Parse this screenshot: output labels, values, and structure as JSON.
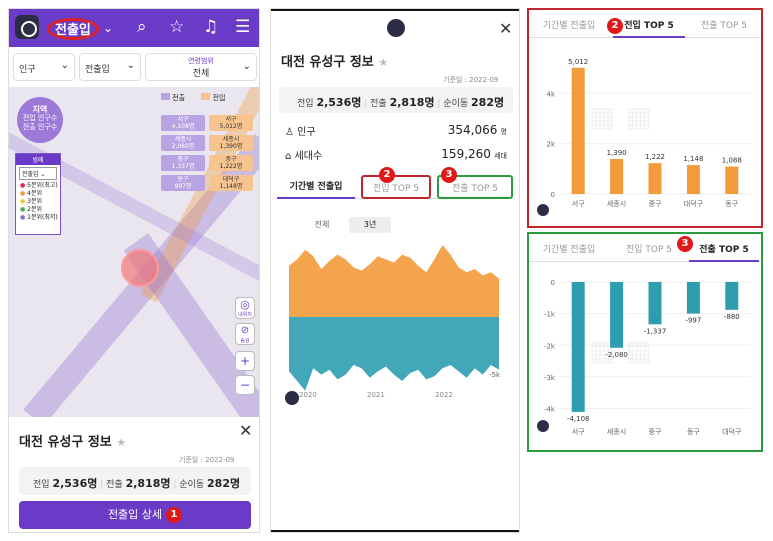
{
  "colors": {
    "purple": "#6a3bc7",
    "inflow_orange": "#f39a3a",
    "outflow_teal": "#2e9db0",
    "highlight_red": "#c0262b",
    "highlight_green": "#2a9d3e"
  },
  "panel1": {
    "header": {
      "title": "전출입",
      "icons": [
        "home-logo-icon",
        "chevron-down-icon",
        "search-icon",
        "star-icon",
        "bell-icon",
        "menu-icon"
      ]
    },
    "filters": {
      "population": "인구",
      "inout": "전출입",
      "age_label": "연령범위",
      "age_value": "전체"
    },
    "map": {
      "region_bubble_title": "지역",
      "region_bubble_line1": "전입 인구수",
      "region_bubble_line2": "전출 인구수",
      "legend_title": "범례",
      "legend_select": "전출입",
      "legend_items": [
        "5분위(최고)",
        "4분위",
        "3분위",
        "2분위",
        "1분위(최저)"
      ],
      "legend_colors": [
        "#e0245e",
        "#f39a3a",
        "#f5c842",
        "#4caf50",
        "#8a6fd1"
      ],
      "inout_labels": {
        "in": "전출",
        "out": "전입"
      },
      "tags": [
        {
          "top": "서구",
          "bottom": "4,108명",
          "top2": "서구",
          "bottom2": "5,012명"
        },
        {
          "top": "세종시",
          "bottom": "2,080명",
          "top2": "세종시",
          "bottom2": "1,390명"
        },
        {
          "top": "중구",
          "bottom": "1,337명",
          "top2": "중구",
          "bottom2": "1,222명"
        },
        {
          "top": "동구",
          "bottom": "997명",
          "top2": "대덕구",
          "bottom2": "1,148명"
        }
      ],
      "mylocation_label": "내위치",
      "hide_label": "숨김",
      "zoom_in": "+",
      "zoom_out": "−"
    },
    "card": {
      "title": "대전 유성구 정보",
      "ref_date": "기준일 : 2022-09",
      "in_label": "전입",
      "in_value": "2,536명",
      "out_label": "전출",
      "out_value": "2,818명",
      "net_label": "순이동",
      "net_value": "282명",
      "detail_button": "전출입 상세",
      "badge": "1"
    }
  },
  "panel2": {
    "title": "대전 유성구 정보",
    "ref_date": "기준일 : 2022-09",
    "in_label": "전입",
    "in_value": "2,536명",
    "out_label": "전출",
    "out_value": "2,818명",
    "net_label": "순이동",
    "net_value": "282명",
    "population_label": "인구",
    "population_value": "354,066",
    "population_unit": "명",
    "household_label": "세대수",
    "household_value": "159,260",
    "household_unit": "세대",
    "tabs": [
      "기간별 전출입",
      "전입 TOP 5",
      "전출 TOP 5"
    ],
    "badges": [
      "2",
      "3"
    ],
    "range_buttons": [
      "전체",
      "3년"
    ],
    "chart_data": {
      "type": "area",
      "x_ticks": [
        "2020",
        "2021",
        "2022"
      ],
      "y_tick_label": "-5k",
      "inflow": [
        3.2,
        3.6,
        4.2,
        3.8,
        3.0,
        3.5,
        3.9,
        3.6,
        3.1,
        2.9,
        3.3,
        3.8,
        3.6,
        3.4,
        3.9,
        3.7,
        3.2,
        2.8,
        3.6,
        4.5,
        3.9,
        3.1,
        2.8,
        3.0,
        2.6,
        2.8,
        2.4
      ],
      "outflow": [
        -3.4,
        -4.0,
        -4.6,
        -3.2,
        -3.6,
        -3.3,
        -3.9,
        -3.6,
        -3.0,
        -3.2,
        -3.8,
        -3.4,
        -3.1,
        -3.6,
        -4.0,
        -3.5,
        -3.3,
        -3.9,
        -3.7,
        -3.2,
        -3.0,
        -3.4,
        -3.8,
        -3.2,
        -3.6,
        -3.0,
        -3.3
      ]
    }
  },
  "panel3": {
    "tabs": [
      "기간별 전출입",
      "전입 TOP 5",
      "전출 TOP 5"
    ],
    "badge": "2",
    "chart_data": {
      "type": "bar",
      "title": "전입 TOP 5",
      "categories": [
        "서구",
        "세종시",
        "중구",
        "대덕구",
        "동구"
      ],
      "values": [
        5012,
        1390,
        1222,
        1148,
        1088
      ],
      "value_labels": [
        "5,012",
        "1,390",
        "1,222",
        "1,148",
        "1,088"
      ],
      "y_ticks": [
        0,
        2000,
        4000
      ],
      "y_tick_labels": [
        "0",
        "2k",
        "4k"
      ],
      "ylim": [
        0,
        5400
      ]
    }
  },
  "panel4": {
    "tabs": [
      "기간별 전출입",
      "전입 TOP 5",
      "전출 TOP 5"
    ],
    "badge": "3",
    "chart_data": {
      "type": "bar",
      "title": "전출 TOP 5",
      "categories": [
        "서구",
        "세종시",
        "중구",
        "동구",
        "대덕구"
      ],
      "values": [
        -4108,
        -2080,
        -1337,
        -997,
        -880
      ],
      "value_labels": [
        "-4,108",
        "-2,080",
        "-1,337",
        "-997",
        "-880"
      ],
      "y_ticks": [
        0,
        -1000,
        -2000,
        -3000,
        -4000
      ],
      "y_tick_labels": [
        "0",
        "-1k",
        "-2k",
        "-3k",
        "-4k"
      ],
      "ylim": [
        -4300,
        0
      ]
    }
  }
}
